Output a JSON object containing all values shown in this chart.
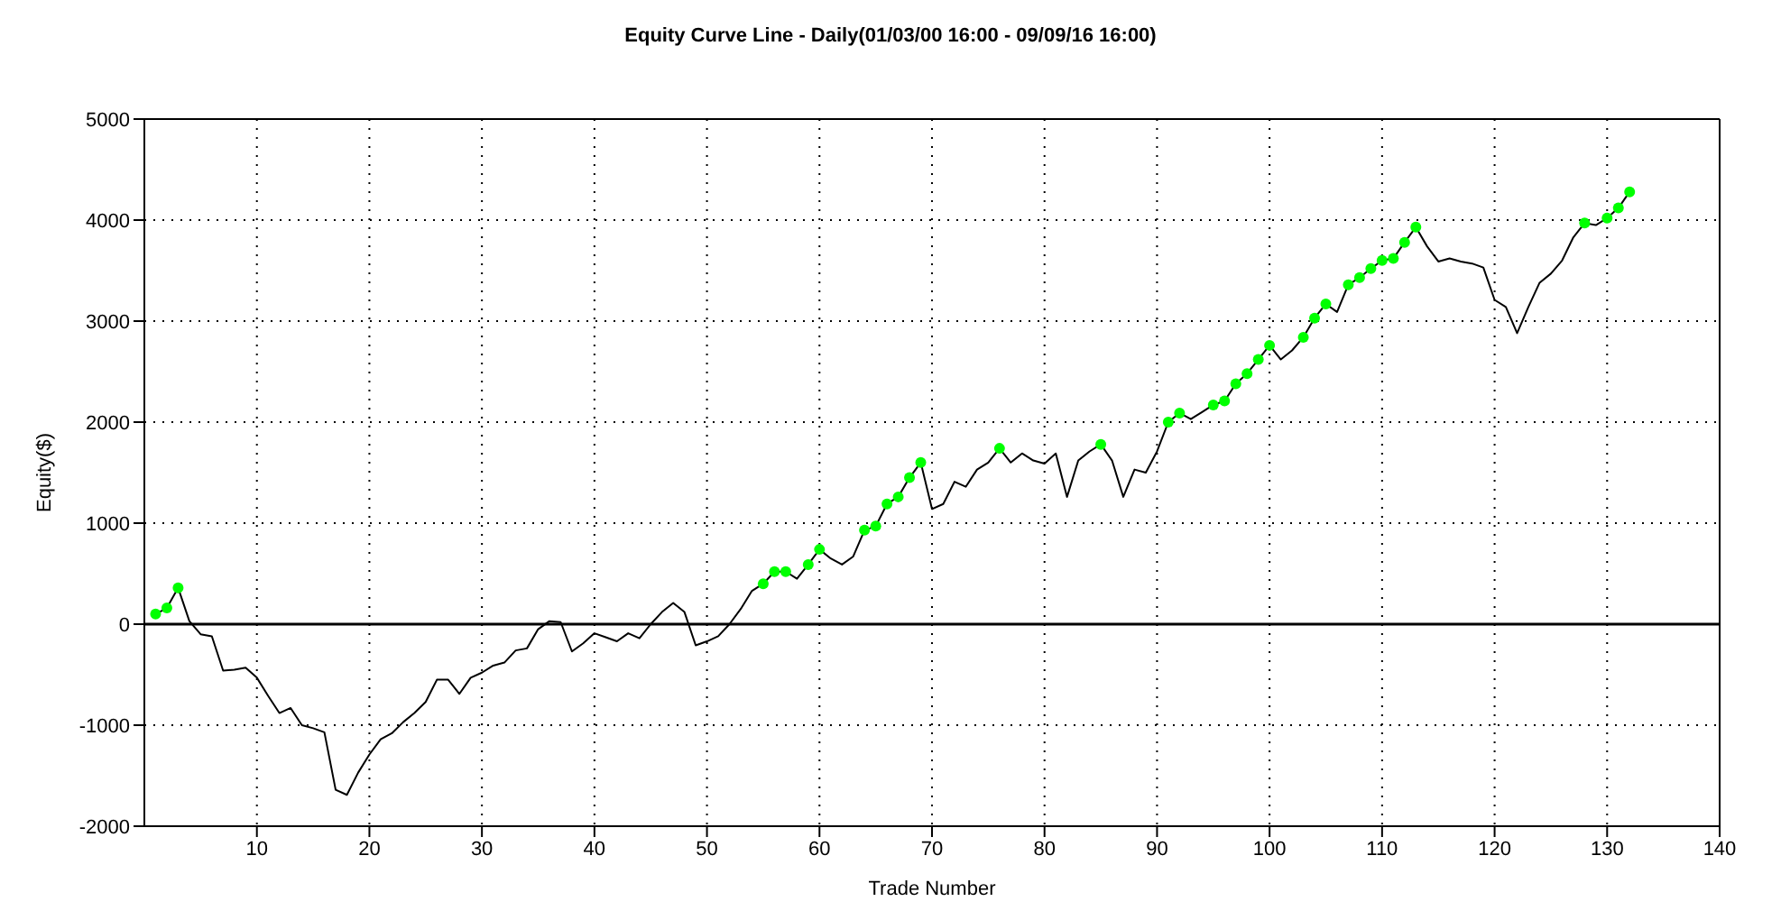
{
  "chart_data": {
    "type": "line",
    "title": "Equity Curve Line - Daily(01/03/00 16:00 - 09/09/16 16:00)",
    "xlabel": "Trade Number",
    "ylabel": "Equity($)",
    "x": [
      1,
      2,
      3,
      4,
      5,
      6,
      7,
      8,
      9,
      10,
      11,
      12,
      13,
      14,
      15,
      16,
      17,
      18,
      19,
      20,
      21,
      22,
      23,
      24,
      25,
      26,
      27,
      28,
      29,
      30,
      31,
      32,
      33,
      34,
      35,
      36,
      37,
      38,
      39,
      40,
      41,
      42,
      43,
      44,
      45,
      46,
      47,
      48,
      49,
      50,
      51,
      52,
      53,
      54,
      55,
      56,
      57,
      58,
      59,
      60,
      61,
      62,
      63,
      64,
      65,
      66,
      67,
      68,
      69,
      70,
      71,
      72,
      73,
      74,
      75,
      76,
      77,
      78,
      79,
      80,
      81,
      82,
      83,
      84,
      85,
      86,
      87,
      88,
      89,
      90,
      91,
      92,
      93,
      94,
      95,
      96,
      97,
      98,
      99,
      100,
      101,
      102,
      103,
      104,
      105,
      106,
      107,
      108,
      109,
      110,
      111,
      112,
      113,
      114,
      115,
      116,
      117,
      118,
      119,
      120,
      121,
      122,
      123,
      124,
      125,
      126,
      127,
      128,
      129,
      130,
      131,
      132
    ],
    "series": [
      {
        "color": "#000000",
        "marker": "none",
        "values": [
          100,
          160,
          360,
          30,
          -100,
          -120,
          -460,
          -450,
          -430,
          -530,
          -710,
          -880,
          -830,
          -1000,
          -1030,
          -1070,
          -1640,
          -1690,
          -1470,
          -1290,
          -1140,
          -1080,
          -970,
          -880,
          -770,
          -550,
          -550,
          -690,
          -530,
          -480,
          -410,
          -380,
          -260,
          -240,
          -50,
          30,
          20,
          -270,
          -190,
          -90,
          -130,
          -170,
          -90,
          -140,
          0,
          120,
          210,
          120,
          -210,
          -170,
          -120,
          0,
          150,
          330,
          400,
          520,
          520,
          450,
          590,
          740,
          650,
          590,
          670,
          930,
          970,
          1190,
          1260,
          1450,
          1600,
          1140,
          1190,
          1410,
          1360,
          1530,
          1600,
          1740,
          1600,
          1690,
          1620,
          1590,
          1690,
          1260,
          1620,
          1710,
          1780,
          1620,
          1260,
          1530,
          1500,
          1710,
          2000,
          2090,
          2030,
          2100,
          2170,
          2210,
          2380,
          2480,
          2620,
          2760,
          2620,
          2710,
          2840,
          3030,
          3170,
          3090,
          3360,
          3430,
          3520,
          3600,
          3620,
          3780,
          3930,
          3740,
          3590,
          3620,
          3590,
          3570,
          3530,
          3210,
          3140,
          2880,
          3140,
          3380,
          3470,
          3600,
          3830,
          3970,
          3950,
          4020,
          4120,
          4280
        ]
      },
      {
        "type": "scatter",
        "color": "#00ff00",
        "marker": "circle",
        "x": [
          1,
          2,
          3,
          55,
          56,
          57,
          59,
          60,
          64,
          65,
          66,
          67,
          68,
          69,
          76,
          85,
          91,
          92,
          95,
          96,
          97,
          98,
          99,
          100,
          103,
          104,
          105,
          107,
          108,
          109,
          110,
          111,
          112,
          113,
          128,
          130,
          131,
          132
        ],
        "values": [
          100,
          160,
          360,
          400,
          520,
          520,
          590,
          740,
          930,
          970,
          1190,
          1260,
          1450,
          1600,
          1740,
          1780,
          2000,
          2090,
          2170,
          2210,
          2380,
          2480,
          2620,
          2760,
          2840,
          3030,
          3170,
          3360,
          3430,
          3520,
          3600,
          3620,
          3780,
          3930,
          3970,
          4020,
          4120,
          4280
        ]
      }
    ],
    "xlim": [
      0,
      140
    ],
    "xticks": [
      10,
      20,
      30,
      40,
      50,
      60,
      70,
      80,
      90,
      100,
      110,
      120,
      130,
      140
    ],
    "ylim": [
      -2000,
      5000
    ],
    "yticks": [
      -2000,
      -1000,
      0,
      1000,
      2000,
      3000,
      4000,
      5000
    ],
    "grid": true,
    "ref_lines": [
      {
        "axis": "y",
        "value": 0,
        "color": "#000000"
      }
    ]
  }
}
